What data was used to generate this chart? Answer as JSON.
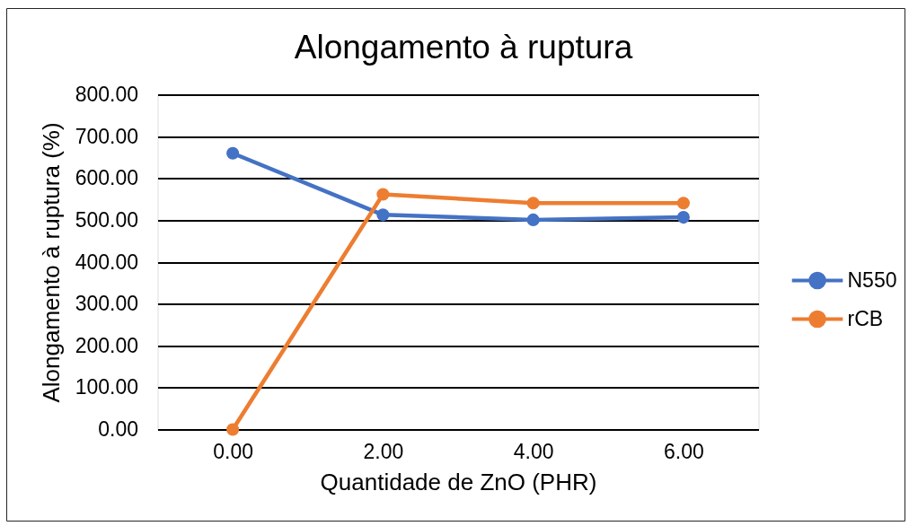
{
  "chart_data": {
    "type": "line",
    "title": "Alongamento à ruptura",
    "xlabel": "Quantidade de ZnO (PHR)",
    "ylabel": "Alongamento à ruptura (%)",
    "categories": [
      "0.00",
      "2.00",
      "4.00",
      "6.00"
    ],
    "series": [
      {
        "name": "N550",
        "color": "#4472c4",
        "values": [
          660,
          513,
          501,
          507
        ]
      },
      {
        "name": "rCB",
        "color": "#ed7d31",
        "values": [
          0,
          562,
          541,
          541
        ]
      }
    ],
    "ylim": [
      0,
      800
    ],
    "yticks": [
      {
        "value": 0,
        "label": "0.00"
      },
      {
        "value": 100,
        "label": "100.00"
      },
      {
        "value": 200,
        "label": "200.00"
      },
      {
        "value": 300,
        "label": "300.00"
      },
      {
        "value": 400,
        "label": "400.00"
      },
      {
        "value": 500,
        "label": "500.00"
      },
      {
        "value": 600,
        "label": "600.00"
      },
      {
        "value": 700,
        "label": "700.00"
      },
      {
        "value": 800,
        "label": "800.00"
      }
    ],
    "grid": "y",
    "legend": "right",
    "marker": "circle",
    "line_style": "solid"
  }
}
